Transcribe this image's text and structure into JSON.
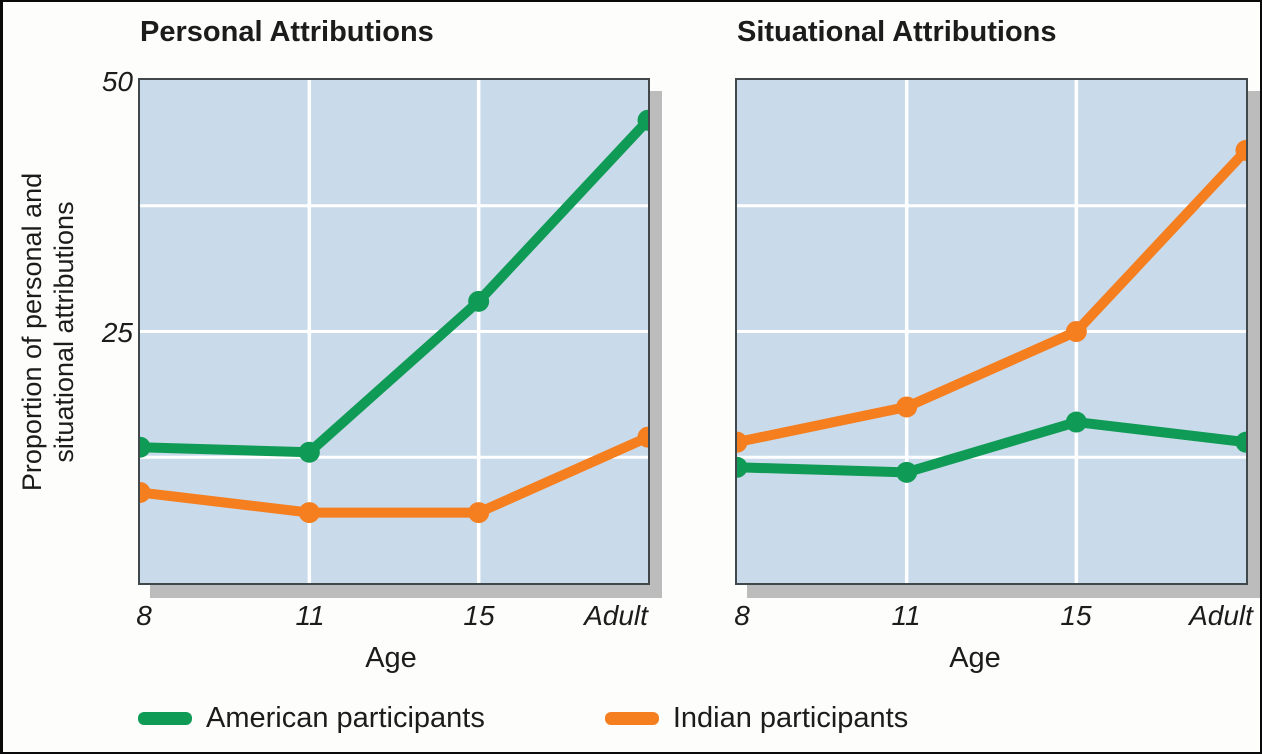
{
  "figure": {
    "y_axis_label_line1": "Proportion of personal and",
    "y_axis_label_line2": "situational attributions",
    "y_tick_top": "50",
    "y_tick_mid": "25"
  },
  "colors": {
    "plot_background": "#c9daea",
    "gridline": "#ffffff",
    "panel_border": "#40484c",
    "shadow": "#bcbcbc",
    "american_green": "#0f9b55",
    "indian_orange": "#f57e1f",
    "text": "#1c1c1c"
  },
  "legend": {
    "items": [
      {
        "label": "American participants",
        "color": "#0f9b55"
      },
      {
        "label": "Indian participants",
        "color": "#f57e1f"
      }
    ]
  },
  "chart_data": [
    {
      "type": "line",
      "title": "Personal Attributions",
      "xlabel": "Age",
      "ylabel": "Proportion of personal and situational attributions",
      "x_categories": [
        "8",
        "11",
        "15",
        "Adult"
      ],
      "ylim": [
        0,
        50
      ],
      "yticks_labeled": [
        25,
        50
      ],
      "gridlines_y": [
        12.5,
        25,
        37.5
      ],
      "grid": true,
      "legend_position": "bottom",
      "series": [
        {
          "name": "American participants",
          "color": "#0f9b55",
          "values": [
            13.5,
            13,
            28,
            46
          ]
        },
        {
          "name": "Indian participants",
          "color": "#f57e1f",
          "values": [
            9,
            7,
            7,
            14.5
          ]
        }
      ]
    },
    {
      "type": "line",
      "title": "Situational Attributions",
      "xlabel": "Age",
      "ylabel": "Proportion of personal and situational attributions",
      "x_categories": [
        "8",
        "11",
        "15",
        "Adult"
      ],
      "ylim": [
        0,
        50
      ],
      "yticks_labeled": [
        25,
        50
      ],
      "gridlines_y": [
        12.5,
        25,
        37.5
      ],
      "grid": true,
      "legend_position": "bottom",
      "series": [
        {
          "name": "American participants",
          "color": "#0f9b55",
          "values": [
            11.5,
            11,
            16,
            14
          ]
        },
        {
          "name": "Indian participants",
          "color": "#f57e1f",
          "values": [
            14,
            17.5,
            25,
            43
          ]
        }
      ]
    }
  ]
}
